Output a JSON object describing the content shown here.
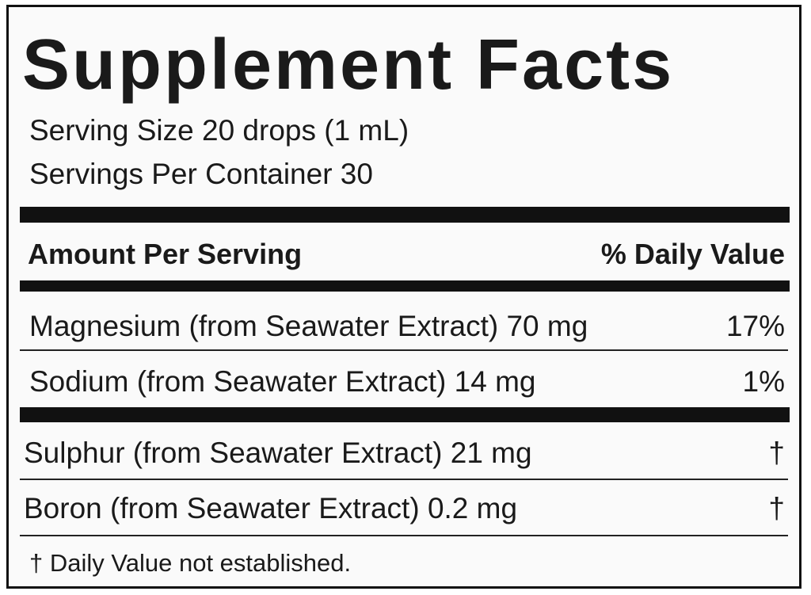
{
  "title": "Supplement Facts",
  "serving_size": "Serving Size 20 drops (1 mL)",
  "servings_per_container": "Servings Per Container 30",
  "header": {
    "amount": "Amount Per Serving",
    "daily_value": "% Daily Value"
  },
  "rows": [
    {
      "name": "Magnesium (from Seawater Extract) 70 mg",
      "dv": "17%"
    },
    {
      "name": "Sodium (from Seawater Extract) 14 mg",
      "dv": "1%"
    },
    {
      "name": "Sulphur (from Seawater Extract) 21 mg",
      "dv": "†"
    },
    {
      "name": "Boron (from Seawater Extract) 0.2 mg",
      "dv": "†"
    }
  ],
  "footnote": "† Daily Value not established."
}
